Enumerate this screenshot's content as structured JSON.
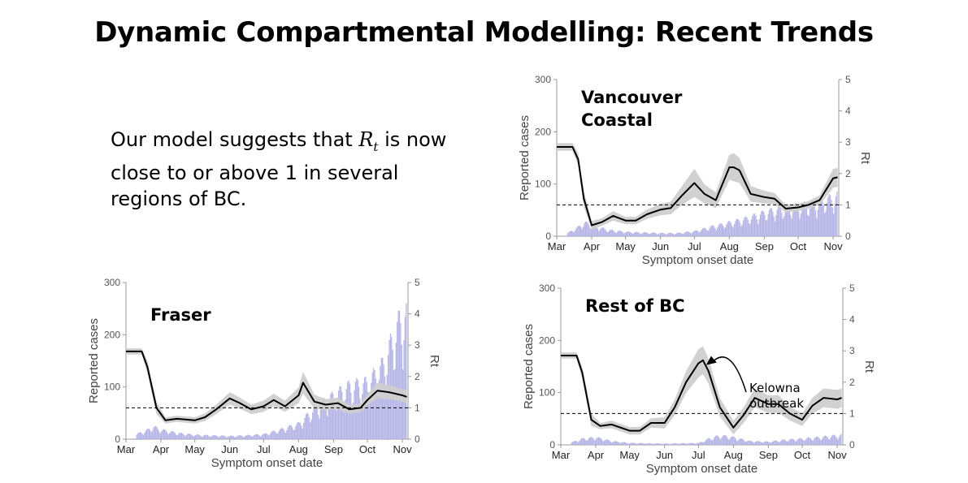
{
  "title": "Dynamic Compartmental Modelling: Recent Trends",
  "summary": {
    "before": "Our model suggests that ",
    "symbol": "R",
    "subscript": "t",
    "after": " is now close to or above 1 in several regions of BC."
  },
  "colors": {
    "cases_bar": "#b3b3e6",
    "ci_band": "#cfcfcf",
    "rt_line": "#000000",
    "threshold_line": "#000000"
  },
  "chart_data": [
    {
      "id": "vancouver",
      "type": "line",
      "title_lines": [
        "Vancouver",
        "Coastal"
      ],
      "xlabel": "Symptom onset date",
      "ylabel": "Reported cases",
      "y2label": "Rt",
      "months": [
        "Mar",
        "Apr",
        "May",
        "Jun",
        "Jul",
        "Aug",
        "Sep",
        "Oct",
        "Nov"
      ],
      "ylim": [
        0,
        300
      ],
      "yticks": [
        0,
        100,
        200,
        300
      ],
      "y2lim": [
        0,
        5
      ],
      "y2ticks": [
        0,
        1,
        2,
        3,
        4,
        5
      ],
      "threshold": 1,
      "series": [
        {
          "name": "Rt",
          "x": [
            "Mar 1",
            "Mar 15",
            "Mar 20",
            "Mar 25",
            "Apr 1",
            "Apr 10",
            "Apr 20",
            "May 1",
            "May 10",
            "May 20",
            "Jun 1",
            "Jun 10",
            "Jun 20",
            "Jul 1",
            "Jul 10",
            "Jul 20",
            "Aug 1",
            "Aug 5",
            "Aug 10",
            "Aug 20",
            "Sep 1",
            "Sep 10",
            "Sep 20",
            "Oct 1",
            "Oct 10",
            "Oct 20",
            "Nov 1",
            "Nov 5"
          ],
          "values": [
            2.85,
            2.85,
            2.45,
            1.2,
            0.35,
            0.45,
            0.65,
            0.5,
            0.5,
            0.7,
            0.85,
            0.9,
            1.3,
            1.7,
            1.35,
            1.15,
            2.2,
            2.2,
            2.1,
            1.35,
            1.25,
            1.2,
            0.88,
            0.92,
            1.0,
            1.15,
            1.85,
            1.88
          ],
          "ci_halfwidth": [
            0.12,
            0.12,
            0.2,
            0.25,
            0.14,
            0.12,
            0.15,
            0.12,
            0.12,
            0.15,
            0.18,
            0.2,
            0.3,
            0.45,
            0.3,
            0.25,
            0.4,
            0.45,
            0.4,
            0.25,
            0.2,
            0.18,
            0.12,
            0.12,
            0.12,
            0.15,
            0.3,
            0.3
          ]
        },
        {
          "name": "Reported cases",
          "x": [
            "Mar 10",
            "Mar 20",
            "Mar 25",
            "Apr 1",
            "Apr 15",
            "May 1",
            "May 15",
            "Jun 1",
            "Jun 15",
            "Jul 1",
            "Jul 15",
            "Aug 1",
            "Aug 15",
            "Sep 1",
            "Sep 15",
            "Oct 1",
            "Oct 15",
            "Nov 1",
            "Nov 5"
          ],
          "values": [
            5,
            15,
            22,
            18,
            10,
            7,
            6,
            5,
            5,
            8,
            15,
            22,
            28,
            38,
            44,
            48,
            52,
            62,
            65
          ]
        }
      ]
    },
    {
      "id": "fraser",
      "type": "line",
      "title_lines": [
        "Fraser"
      ],
      "xlabel": "Symptom onset date",
      "ylabel": "Reported cases",
      "y2label": "Rt",
      "months": [
        "Mar",
        "Apr",
        "May",
        "Jun",
        "Jul",
        "Aug",
        "Sep",
        "Oct",
        "Nov"
      ],
      "ylim": [
        0,
        300
      ],
      "yticks": [
        0,
        100,
        200,
        300
      ],
      "y2lim": [
        0,
        5
      ],
      "y2ticks": [
        0,
        1,
        2,
        3,
        4,
        5
      ],
      "threshold": 1,
      "series": [
        {
          "name": "Rt",
          "x": [
            "Mar 1",
            "Mar 15",
            "Mar 20",
            "Mar 28",
            "Apr 5",
            "Apr 15",
            "May 1",
            "May 10",
            "May 20",
            "Jun 1",
            "Jun 10",
            "Jun 20",
            "Jul 1",
            "Jul 10",
            "Jul 20",
            "Aug 1",
            "Aug 5",
            "Aug 15",
            "Aug 25",
            "Sep 5",
            "Sep 15",
            "Sep 25",
            "Oct 1",
            "Oct 10",
            "Oct 20",
            "Nov 1",
            "Nov 5"
          ],
          "values": [
            2.8,
            2.8,
            2.3,
            1.0,
            0.6,
            0.65,
            0.6,
            0.7,
            0.95,
            1.3,
            1.15,
            0.95,
            1.05,
            1.25,
            1.05,
            1.4,
            1.8,
            1.2,
            1.1,
            1.15,
            0.95,
            1.0,
            1.25,
            1.55,
            1.5,
            1.4,
            1.35
          ],
          "ci_halfwidth": [
            0.1,
            0.1,
            0.2,
            0.2,
            0.1,
            0.1,
            0.1,
            0.12,
            0.15,
            0.2,
            0.18,
            0.15,
            0.18,
            0.2,
            0.18,
            0.25,
            0.35,
            0.22,
            0.18,
            0.18,
            0.14,
            0.14,
            0.18,
            0.25,
            0.22,
            0.2,
            0.2
          ]
        },
        {
          "name": "Reported cases",
          "x": [
            "Mar 10",
            "Mar 20",
            "Mar 25",
            "Apr 1",
            "Apr 15",
            "May 1",
            "May 15",
            "Jun 1",
            "Jun 15",
            "Jul 1",
            "Jul 15",
            "Aug 1",
            "Aug 15",
            "Sep 1",
            "Sep 15",
            "Oct 1",
            "Oct 15",
            "Oct 25",
            "Nov 1",
            "Nov 5"
          ],
          "values": [
            8,
            15,
            20,
            15,
            10,
            7,
            6,
            5,
            6,
            8,
            15,
            25,
            50,
            70,
            85,
            90,
            120,
            170,
            200,
            195
          ]
        }
      ]
    },
    {
      "id": "rest",
      "type": "line",
      "title_lines": [
        "Rest of BC"
      ],
      "xlabel": "Symptom onset date",
      "ylabel": "Reported cases",
      "y2label": "Rt",
      "months": [
        "Mar",
        "Apr",
        "May",
        "Jun",
        "Jul",
        "Aug",
        "Sep",
        "Oct",
        "Nov"
      ],
      "ylim": [
        0,
        300
      ],
      "yticks": [
        0,
        100,
        200,
        300
      ],
      "y2lim": [
        0,
        5
      ],
      "y2ticks": [
        0,
        1,
        2,
        3,
        4,
        5
      ],
      "threshold": 1,
      "annotation": {
        "lines": [
          "Kelowna",
          "outbreak"
        ],
        "target": "Jul 5"
      },
      "series": [
        {
          "name": "Rt",
          "x": [
            "Mar 1",
            "Mar 15",
            "Mar 20",
            "Mar 28",
            "Apr 5",
            "Apr 15",
            "May 1",
            "May 10",
            "May 20",
            "Jun 1",
            "Jun 10",
            "Jun 20",
            "Jul 1",
            "Jul 5",
            "Jul 10",
            "Jul 20",
            "Aug 1",
            "Aug 10",
            "Aug 20",
            "Sep 1",
            "Sep 10",
            "Sep 20",
            "Oct 1",
            "Oct 10",
            "Oct 20",
            "Nov 1",
            "Nov 5"
          ],
          "values": [
            2.85,
            2.85,
            2.3,
            0.8,
            0.6,
            0.65,
            0.45,
            0.45,
            0.7,
            0.7,
            1.2,
            2.0,
            2.6,
            2.7,
            2.35,
            1.2,
            0.55,
            0.95,
            1.5,
            1.3,
            1.3,
            1.0,
            0.8,
            1.25,
            1.5,
            1.45,
            1.5
          ],
          "ci_halfwidth": [
            0.1,
            0.1,
            0.2,
            0.2,
            0.1,
            0.12,
            0.12,
            0.12,
            0.15,
            0.18,
            0.25,
            0.35,
            0.45,
            0.45,
            0.4,
            0.3,
            0.22,
            0.25,
            0.3,
            0.28,
            0.28,
            0.22,
            0.2,
            0.25,
            0.3,
            0.3,
            0.3
          ]
        },
        {
          "name": "Reported cases",
          "x": [
            "Mar 10",
            "Mar 20",
            "Apr 1",
            "Apr 15",
            "May 1",
            "Jun 1",
            "Jul 1",
            "Jul 10",
            "Jul 20",
            "Aug 1",
            "Aug 15",
            "Sep 1",
            "Sep 15",
            "Oct 1",
            "Oct 15",
            "Nov 1",
            "Nov 5"
          ],
          "values": [
            4,
            10,
            12,
            6,
            3,
            2,
            3,
            10,
            15,
            12,
            6,
            5,
            8,
            10,
            12,
            15,
            16
          ]
        }
      ]
    }
  ]
}
